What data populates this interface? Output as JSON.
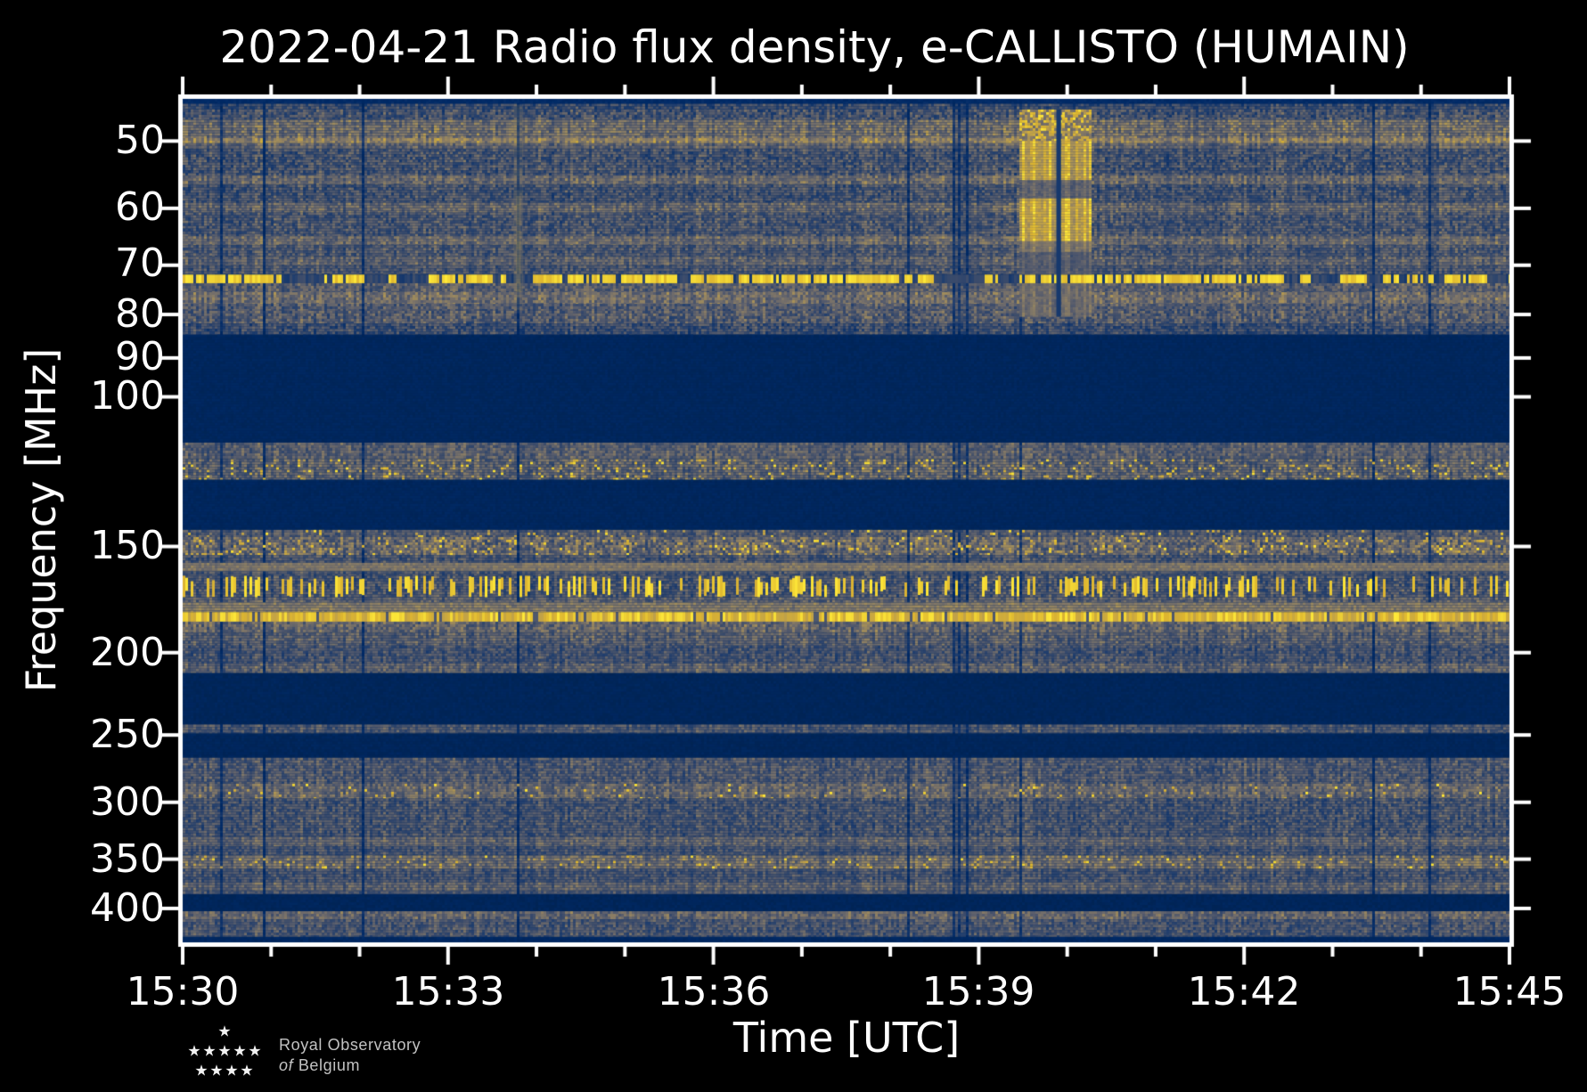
{
  "figure": {
    "title": "2022-04-21 Radio flux density, e-CALLISTO (HUMAIN)",
    "xlabel": "Time [UTC]",
    "ylabel": "Frequency [MHz]",
    "background": "#000000",
    "text_color": "#ffffff"
  },
  "logo": {
    "star": "★",
    "line1": "Royal Observatory",
    "of_word": "of",
    "country": "Belgium"
  },
  "chart_data": {
    "type": "heatmap",
    "title": "2022-04-21 Radio flux density, e-CALLISTO (HUMAIN)",
    "xlabel": "Time [UTC]",
    "ylabel": "Frequency [MHz]",
    "x_ticks_major": [
      "15:30",
      "15:33",
      "15:36",
      "15:39",
      "15:42",
      "15:45"
    ],
    "x_minor_interval_minutes": 1,
    "x_total_minutes": 15,
    "y_scale": "log",
    "y_range_mhz": [
      44.6,
      438.5
    ],
    "y_ticks_mhz": [
      50,
      60,
      70,
      80,
      90,
      100,
      150,
      200,
      250,
      300,
      350,
      400
    ],
    "grid": false,
    "colormap": "cividis",
    "colormap_stops": [
      [
        0.0,
        [
          0,
          34,
          78
        ]
      ],
      [
        0.1,
        [
          0,
          42,
          103
        ]
      ],
      [
        0.2,
        [
          32,
          62,
          110
        ]
      ],
      [
        0.3,
        [
          60,
          76,
          107
        ]
      ],
      [
        0.4,
        [
          85,
          91,
          108
        ]
      ],
      [
        0.5,
        [
          110,
          107,
          107
        ]
      ],
      [
        0.6,
        [
          135,
          123,
          102
        ]
      ],
      [
        0.7,
        [
          162,
          141,
          91
        ]
      ],
      [
        0.8,
        [
          190,
          160,
          74
        ]
      ],
      [
        0.9,
        [
          221,
          181,
          48
        ]
      ],
      [
        1.0,
        [
          254,
          232,
          56
        ]
      ]
    ],
    "bands": [
      {
        "f0": 44.6,
        "f1": 45.2,
        "mode": "solid",
        "base": 0.1
      },
      {
        "f0": 45.2,
        "f1": 45.9,
        "mode": "noise",
        "base": 0.3,
        "amp": 0.15
      },
      {
        "f0": 45.9,
        "f1": 47.2,
        "mode": "noise",
        "base": 0.34,
        "amp": 0.17
      },
      {
        "f0": 47.2,
        "f1": 49.6,
        "mode": "noise",
        "base": 0.52,
        "amp": 0.16
      },
      {
        "f0": 49.6,
        "f1": 50.3,
        "mode": "noise",
        "base": 0.62,
        "amp": 0.14
      },
      {
        "f0": 50.3,
        "f1": 51.1,
        "mode": "noise",
        "base": 0.44,
        "amp": 0.15
      },
      {
        "f0": 51.1,
        "f1": 54.9,
        "mode": "noise",
        "base": 0.35,
        "amp": 0.17
      },
      {
        "f0": 54.9,
        "f1": 56.3,
        "mode": "noise",
        "base": 0.48,
        "amp": 0.15
      },
      {
        "f0": 56.3,
        "f1": 59.1,
        "mode": "noise",
        "base": 0.34,
        "amp": 0.16
      },
      {
        "f0": 59.1,
        "f1": 60.7,
        "mode": "noise",
        "base": 0.47,
        "amp": 0.15
      },
      {
        "f0": 60.7,
        "f1": 64.7,
        "mode": "noise",
        "base": 0.36,
        "amp": 0.16
      },
      {
        "f0": 64.7,
        "f1": 66.3,
        "mode": "noise",
        "base": 0.49,
        "amp": 0.14
      },
      {
        "f0": 66.3,
        "f1": 68.4,
        "mode": "noise",
        "base": 0.37,
        "amp": 0.15
      },
      {
        "f0": 68.4,
        "f1": 70.1,
        "mode": "noise",
        "base": 0.44,
        "amp": 0.14
      },
      {
        "f0": 70.1,
        "f1": 71.8,
        "mode": "noise",
        "base": 0.36,
        "amp": 0.14
      },
      {
        "f0": 71.8,
        "f1": 73.5,
        "mode": "dashes",
        "base": 0.24,
        "amp": 0.08
      },
      {
        "f0": 73.5,
        "f1": 75.3,
        "mode": "noise",
        "base": 0.41,
        "amp": 0.15
      },
      {
        "f0": 75.3,
        "f1": 77.7,
        "mode": "noise",
        "base": 0.5,
        "amp": 0.15
      },
      {
        "f0": 77.7,
        "f1": 79.2,
        "mode": "noise",
        "base": 0.39,
        "amp": 0.15
      },
      {
        "f0": 79.2,
        "f1": 82.0,
        "mode": "noise",
        "base": 0.4,
        "amp": 0.17
      },
      {
        "f0": 82.0,
        "f1": 84.5,
        "mode": "noise",
        "base": 0.31,
        "amp": 0.15
      },
      {
        "f0": 84.5,
        "f1": 113.2,
        "mode": "solid",
        "base": 0.06
      },
      {
        "f0": 113.2,
        "f1": 118.4,
        "mode": "noise",
        "base": 0.42,
        "amp": 0.14
      },
      {
        "f0": 118.4,
        "f1": 125.2,
        "mode": "speckle",
        "base": 0.44,
        "amp": 0.16,
        "p": 0.1
      },
      {
        "f0": 125.2,
        "f1": 143.4,
        "mode": "solid",
        "base": 0.06
      },
      {
        "f0": 143.4,
        "f1": 146.2,
        "mode": "speckle",
        "base": 0.38,
        "amp": 0.14,
        "p": 0.05
      },
      {
        "f0": 146.2,
        "f1": 153.6,
        "mode": "speckle",
        "base": 0.48,
        "amp": 0.2,
        "p": 0.1
      },
      {
        "f0": 153.6,
        "f1": 156.8,
        "mode": "noise",
        "base": 0.36,
        "amp": 0.14
      },
      {
        "f0": 156.8,
        "f1": 160.5,
        "mode": "smooth",
        "base": 0.56,
        "amp": 0.07
      },
      {
        "f0": 160.5,
        "f1": 162.4,
        "mode": "noise",
        "base": 0.36,
        "amp": 0.13
      },
      {
        "f0": 162.4,
        "f1": 172.2,
        "mode": "bursts",
        "base": 0.36,
        "amp": 0.15,
        "p": 0.38
      },
      {
        "f0": 172.2,
        "f1": 174.6,
        "mode": "noise",
        "base": 0.42,
        "amp": 0.14
      },
      {
        "f0": 174.6,
        "f1": 179.2,
        "mode": "smooth",
        "base": 0.58,
        "amp": 0.09
      },
      {
        "f0": 179.2,
        "f1": 183.9,
        "mode": "line",
        "base": 0.9,
        "amp": 0.1
      },
      {
        "f0": 183.9,
        "f1": 189.6,
        "mode": "noise",
        "base": 0.46,
        "amp": 0.16
      },
      {
        "f0": 189.6,
        "f1": 196.2,
        "mode": "noise",
        "base": 0.42,
        "amp": 0.15
      },
      {
        "f0": 196.2,
        "f1": 205.9,
        "mode": "noise",
        "base": 0.34,
        "amp": 0.14
      },
      {
        "f0": 205.9,
        "f1": 211.4,
        "mode": "noise",
        "base": 0.44,
        "amp": 0.15
      },
      {
        "f0": 211.4,
        "f1": 243.0,
        "mode": "solid",
        "base": 0.05
      },
      {
        "f0": 243.0,
        "f1": 249.0,
        "mode": "noise",
        "base": 0.37,
        "amp": 0.13
      },
      {
        "f0": 249.0,
        "f1": 265.9,
        "mode": "solid",
        "base": 0.05
      },
      {
        "f0": 265.9,
        "f1": 285.3,
        "mode": "noise",
        "base": 0.38,
        "amp": 0.15
      },
      {
        "f0": 285.3,
        "f1": 297.0,
        "mode": "speckle",
        "base": 0.47,
        "amp": 0.15,
        "p": 0.04
      },
      {
        "f0": 297.0,
        "f1": 329.6,
        "mode": "noise",
        "base": 0.35,
        "amp": 0.15
      },
      {
        "f0": 329.6,
        "f1": 338.2,
        "mode": "noise",
        "base": 0.45,
        "amp": 0.13
      },
      {
        "f0": 338.2,
        "f1": 346.5,
        "mode": "noise",
        "base": 0.34,
        "amp": 0.13
      },
      {
        "f0": 346.5,
        "f1": 359.4,
        "mode": "speckle",
        "base": 0.5,
        "amp": 0.15,
        "p": 0.07
      },
      {
        "f0": 359.4,
        "f1": 372.7,
        "mode": "noise",
        "base": 0.34,
        "amp": 0.13
      },
      {
        "f0": 372.7,
        "f1": 381.8,
        "mode": "noise",
        "base": 0.44,
        "amp": 0.13
      },
      {
        "f0": 381.8,
        "f1": 385.0,
        "mode": "noise",
        "base": 0.36,
        "amp": 0.12
      },
      {
        "f0": 385.0,
        "f1": 403.0,
        "mode": "solid",
        "base": 0.05
      },
      {
        "f0": 403.0,
        "f1": 412.0,
        "mode": "noise",
        "base": 0.46,
        "amp": 0.14
      },
      {
        "f0": 412.0,
        "f1": 432.0,
        "mode": "noise",
        "base": 0.36,
        "amp": 0.14
      },
      {
        "f0": 432.0,
        "f1": 438.5,
        "mode": "solid",
        "base": 0.08
      }
    ],
    "features": {
      "rfi_dashed_line_mhz": 72.6,
      "bright_rfi_line_mhz": 181.5,
      "burst": {
        "time_frac_start": 0.629,
        "time_frac_end": 0.684,
        "data_gap_frac": [
          0.6585,
          0.662
        ],
        "sub_bands": [
          {
            "f0": 45.9,
            "f1": 50.0,
            "intensity": 0.62,
            "style": "speckle"
          },
          {
            "f0": 50.0,
            "f1": 55.6,
            "intensity": 0.9,
            "style": "fill"
          },
          {
            "f0": 55.6,
            "f1": 58.4,
            "intensity": 0.5,
            "style": "fill"
          },
          {
            "f0": 58.4,
            "f1": 65.6,
            "intensity": 0.92,
            "style": "fill"
          },
          {
            "f0": 65.6,
            "f1": 67.6,
            "intensity": 0.62,
            "style": "fill"
          },
          {
            "f0": 67.6,
            "f1": 71.8,
            "intensity": 0.45,
            "style": "fill"
          },
          {
            "f0": 73.5,
            "f1": 80.5,
            "intensity": 0.56,
            "style": "fill"
          }
        ]
      },
      "vertical_streak": {
        "time_frac": 0.2527,
        "f0_mhz": 45.3,
        "f1_mhz": 79.0
      }
    }
  }
}
